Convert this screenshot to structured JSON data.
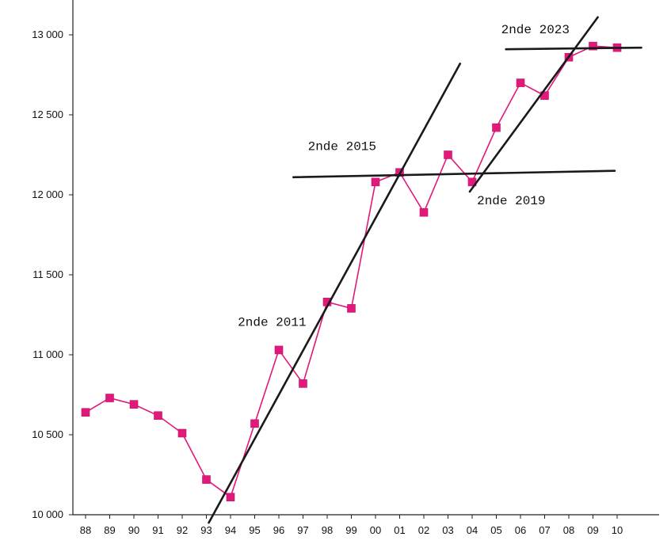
{
  "chart_data": {
    "type": "line",
    "title": "",
    "xlabel": "",
    "ylabel": "",
    "x": [
      "88",
      "89",
      "90",
      "91",
      "92",
      "93",
      "94",
      "95",
      "96",
      "97",
      "98",
      "99",
      "00",
      "01",
      "02",
      "03",
      "04",
      "05",
      "06",
      "07",
      "08",
      "09",
      "10"
    ],
    "series": [
      {
        "color": "#e0197a",
        "values": [
          10640,
          10730,
          10690,
          10620,
          10510,
          10220,
          10110,
          10570,
          11030,
          10820,
          11330,
          11290,
          12080,
          12140,
          11890,
          12250,
          12080,
          12420,
          12700,
          12620,
          12860,
          12930,
          12920
        ]
      }
    ],
    "ylim": [
      10000,
      13500
    ],
    "yticks": [
      10000,
      10500,
      11000,
      11500,
      12000,
      12500,
      13000
    ],
    "ytick_labels": [
      "10 000",
      "10 500",
      "11 000",
      "11 500",
      "12 000",
      "12 500",
      "13 000"
    ],
    "grid": false,
    "legend": "none",
    "trend_lines": [
      {
        "from": {
          "x": 5.1,
          "y": 9950
        },
        "to": {
          "x": 15.5,
          "y": 12820
        }
      },
      {
        "from": {
          "x": 8.6,
          "y": 12110
        },
        "to": {
          "x": 21.9,
          "y": 12150
        }
      },
      {
        "from": {
          "x": 15.9,
          "y": 12020
        },
        "to": {
          "x": 21.2,
          "y": 13110
        }
      },
      {
        "from": {
          "x": 17.4,
          "y": 12910
        },
        "to": {
          "x": 23.0,
          "y": 12920
        }
      }
    ],
    "annotations": [
      {
        "text": "2nde 2011",
        "x": 6.3,
        "y": 11180
      },
      {
        "text": "2nde 2015",
        "x": 9.2,
        "y": 12280
      },
      {
        "text": "2nde 2019",
        "x": 16.2,
        "y": 11940
      },
      {
        "text": "2nde 2023",
        "x": 17.2,
        "y": 13010
      }
    ],
    "line_color": "#1a1a1a"
  }
}
